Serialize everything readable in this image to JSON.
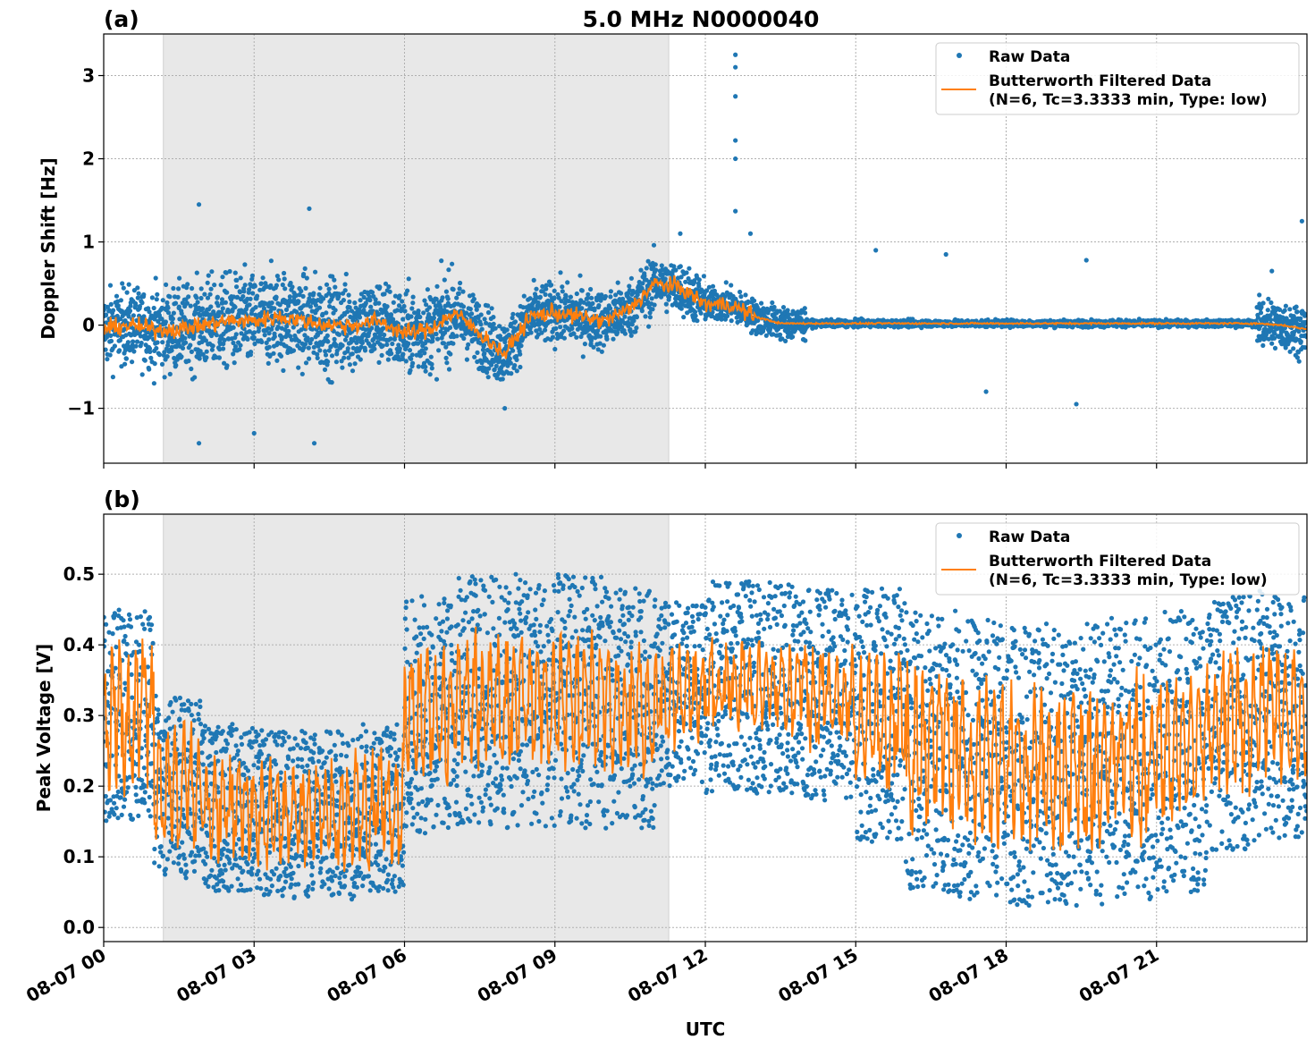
{
  "title": "5.0 MHz N0000040",
  "xlabel": "UTC",
  "x_ticks": [
    "08-07 00",
    "08-07 03",
    "08-07 06",
    "08-07 09",
    "08-07 12",
    "08-07 15",
    "08-07 18",
    "08-07 21"
  ],
  "x_tick_hours": [
    0,
    3,
    6,
    9,
    12,
    15,
    18,
    21
  ],
  "xlim_hours": [
    0,
    24
  ],
  "shaded_interval_hours": [
    1.19,
    11.27
  ],
  "colors": {
    "raw": "#1f77b4",
    "filtered": "#ff7f0e",
    "shade": "#e8e8e8",
    "grid": "#b0b0b0"
  },
  "legend": {
    "raw": "Raw Data",
    "filtered_line1": "Butterworth Filtered Data",
    "filtered_line2": "(N=6, Tc=3.3333 min, Type: low)",
    "placement": "top-right"
  },
  "chart_data": [
    {
      "type": "scatter",
      "panel_label": "(a)",
      "ylabel": "Doppler Shift [Hz]",
      "ylim": [
        -1.66,
        3.5
      ],
      "y_ticks": [
        -1,
        0,
        1,
        2,
        3
      ],
      "y_tick_labels": [
        "−1",
        "0",
        "1",
        "2",
        "3"
      ],
      "grid": true,
      "filtered_hours_step": 0.5,
      "filtered": [
        -0.05,
        0.0,
        -0.05,
        -0.05,
        0.0,
        0.05,
        0.05,
        0.1,
        0.05,
        0.0,
        0.0,
        0.05,
        -0.1,
        -0.05,
        0.15,
        -0.1,
        -0.35,
        0.1,
        0.15,
        0.1,
        0.05,
        0.2,
        0.5,
        0.45,
        0.25,
        0.25,
        0.1,
        0.02,
        0.02,
        0.02,
        0.02,
        0.02,
        0.02,
        0.02,
        0.02,
        0.02,
        0.02,
        0.02,
        0.02,
        0.02,
        0.02,
        0.02,
        0.02,
        0.02,
        0.02,
        0.02,
        0.02,
        0.0,
        -0.05
      ],
      "raw_spread_hourly": [
        0.45,
        0.5,
        0.55,
        0.55,
        0.55,
        0.5,
        0.5,
        0.4,
        0.35,
        0.35,
        0.35,
        0.3,
        0.2,
        0.2,
        0.04,
        0.04,
        0.04,
        0.04,
        0.04,
        0.04,
        0.04,
        0.04,
        0.04,
        0.3
      ],
      "raw_outliers": [
        [
          12.6,
          3.25
        ],
        [
          12.6,
          3.1
        ],
        [
          12.6,
          2.75
        ],
        [
          12.6,
          2.22
        ],
        [
          12.6,
          2.0
        ],
        [
          12.6,
          1.37
        ],
        [
          1.9,
          1.45
        ],
        [
          4.1,
          1.4
        ],
        [
          15.4,
          0.9
        ],
        [
          16.8,
          0.85
        ],
        [
          19.6,
          0.78
        ],
        [
          23.9,
          1.25
        ],
        [
          23.3,
          0.65
        ],
        [
          17.6,
          -0.8
        ],
        [
          19.4,
          -0.95
        ],
        [
          4.2,
          -1.42
        ],
        [
          1.9,
          -1.42
        ],
        [
          3.0,
          -1.3
        ],
        [
          8.0,
          -1.0
        ],
        [
          12.9,
          1.1
        ],
        [
          11.5,
          1.1
        ]
      ]
    },
    {
      "type": "scatter",
      "panel_label": "(b)",
      "ylabel": "Peak Voltage [V]",
      "ylim": [
        -0.02,
        0.585
      ],
      "y_ticks": [
        0.0,
        0.1,
        0.2,
        0.3,
        0.4,
        0.5
      ],
      "y_tick_labels": [
        "0.0",
        "0.1",
        "0.2",
        "0.3",
        "0.4",
        "0.5"
      ],
      "grid": true,
      "raw_mean_hourly": [
        0.3,
        0.2,
        0.17,
        0.16,
        0.16,
        0.17,
        0.3,
        0.32,
        0.32,
        0.32,
        0.31,
        0.33,
        0.34,
        0.34,
        0.33,
        0.3,
        0.25,
        0.24,
        0.23,
        0.23,
        0.24,
        0.25,
        0.29,
        0.3
      ],
      "raw_spread_hourly": [
        0.15,
        0.13,
        0.12,
        0.12,
        0.12,
        0.12,
        0.17,
        0.18,
        0.18,
        0.18,
        0.17,
        0.13,
        0.15,
        0.15,
        0.15,
        0.18,
        0.2,
        0.2,
        0.2,
        0.2,
        0.2,
        0.2,
        0.18,
        0.18
      ],
      "filtered_amp_hourly": [
        0.1,
        0.08,
        0.07,
        0.07,
        0.07,
        0.08,
        0.09,
        0.09,
        0.09,
        0.09,
        0.09,
        0.07,
        0.06,
        0.06,
        0.07,
        0.09,
        0.11,
        0.11,
        0.11,
        0.11,
        0.11,
        0.1,
        0.09,
        0.09
      ]
    }
  ]
}
